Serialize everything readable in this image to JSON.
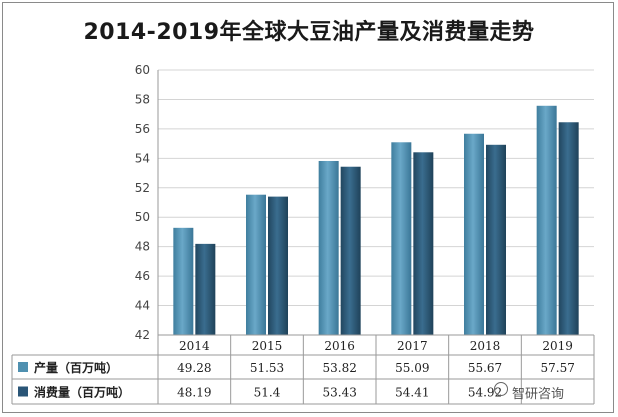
{
  "chart_data": {
    "type": "bar",
    "title": "2014-2019年全球大豆油产量及消费量走势",
    "categories": [
      "2014",
      "2015",
      "2016",
      "2017",
      "2018",
      "2019"
    ],
    "series": [
      {
        "name": "产量（百万吨）",
        "values": [
          49.28,
          51.53,
          53.82,
          55.09,
          55.67,
          57.57
        ],
        "color": "#4f90b0"
      },
      {
        "name": "消费量（百万吨）",
        "values": [
          48.19,
          51.4,
          53.43,
          54.41,
          54.92,
          56.45
        ],
        "color": "#2a5577"
      }
    ],
    "table_values": [
      [
        "49.28",
        "51.53",
        "53.82",
        "55.09",
        "55.67",
        "57.57"
      ],
      [
        "48.19",
        "51.4",
        "53.43",
        "54.41",
        "54.92",
        ""
      ]
    ],
    "ylim": [
      42,
      60
    ],
    "yticks": [
      42,
      44,
      46,
      48,
      50,
      52,
      54,
      56,
      58,
      60
    ],
    "grid": true,
    "legend": "data-table-below"
  },
  "watermark": {
    "text": "智研咨询"
  }
}
